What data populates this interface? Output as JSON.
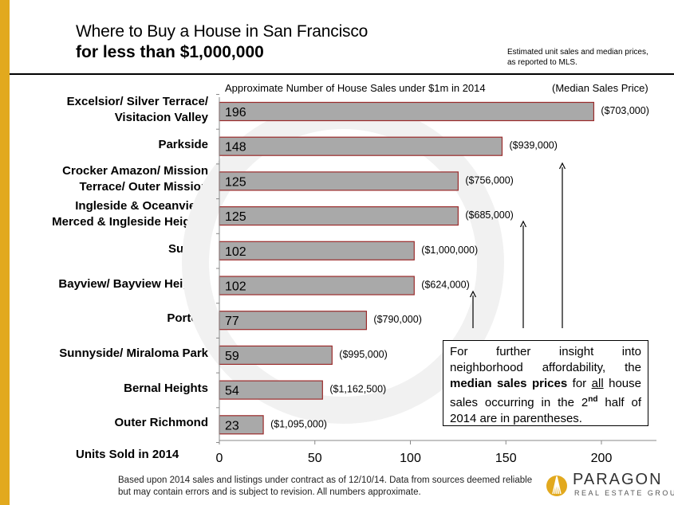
{
  "header": {
    "title_line1": "Where to Buy a House in San Francisco",
    "title_line2": "for less than $1,000,000",
    "note": "Estimated unit sales and median prices, as reported to MLS."
  },
  "chart_data": {
    "type": "bar",
    "orientation": "horizontal",
    "title": "Approximate Number of House Sales under $1m in 2014",
    "secondary_label": "(Median Sales Price)",
    "xlabel": "Units Sold in 2014",
    "xlim": [
      0,
      230
    ],
    "x_ticks": [
      0,
      50,
      100,
      150,
      200
    ],
    "grid": false,
    "categories": [
      "Excelsior/ Silver Terrace/ Visitacion Valley",
      "Parkside",
      "Crocker Amazon/ Mission Terrace/ Outer Mission",
      "Ingleside & Oceanview/ Merced & Ingleside  Heights",
      "Sunset",
      "Bayview/ Bayview Heights",
      "Portola",
      "Sunnyside/ Miraloma Park",
      "Bernal Heights",
      "Outer Richmond"
    ],
    "category_lines": [
      [
        "Excelsior/ Silver Terrace/",
        "Visitacion Valley"
      ],
      [
        "Parkside"
      ],
      [
        "Crocker Amazon/ Mission",
        "Terrace/ Outer Mission"
      ],
      [
        "Ingleside & Oceanview/",
        "Merced & Ingleside  Heights"
      ],
      [
        "Sunset"
      ],
      [
        "Bayview/ Bayview Heights"
      ],
      [
        "Portola"
      ],
      [
        "Sunnyside/ Miraloma Park"
      ],
      [
        "Bernal Heights"
      ],
      [
        "Outer Richmond"
      ]
    ],
    "values": [
      196,
      148,
      125,
      125,
      102,
      102,
      77,
      59,
      54,
      23
    ],
    "median_prices": [
      "($703,000)",
      "($939,000)",
      "($756,000)",
      "($685,000)",
      "($1,000,000)",
      "($624,000)",
      "($790,000)",
      "($995,000)",
      "($1,162,500)",
      "($1,095,000)"
    ],
    "colors": {
      "bar_fill": "#a9a9a9",
      "bar_border": "#9b2b2b"
    }
  },
  "callout": {
    "text_before": "For further insight into neighborhood affordability, the ",
    "bold_text": "median sales prices",
    "text_middle": " for ",
    "underlined_text": "all",
    "text_after1": " house sales occurring in the 2",
    "superscript": "nd",
    "text_after2": " half of 2014 are in parentheses."
  },
  "footer": {
    "text": "Based upon 2014 sales and listings under contract as of 12/10/14. Data from sources deemed reliable but may contain errors and is subject to revision. All numbers approximate."
  },
  "logo": {
    "name": "PARAGON",
    "subtitle": "REAL ESTATE GROUP"
  }
}
